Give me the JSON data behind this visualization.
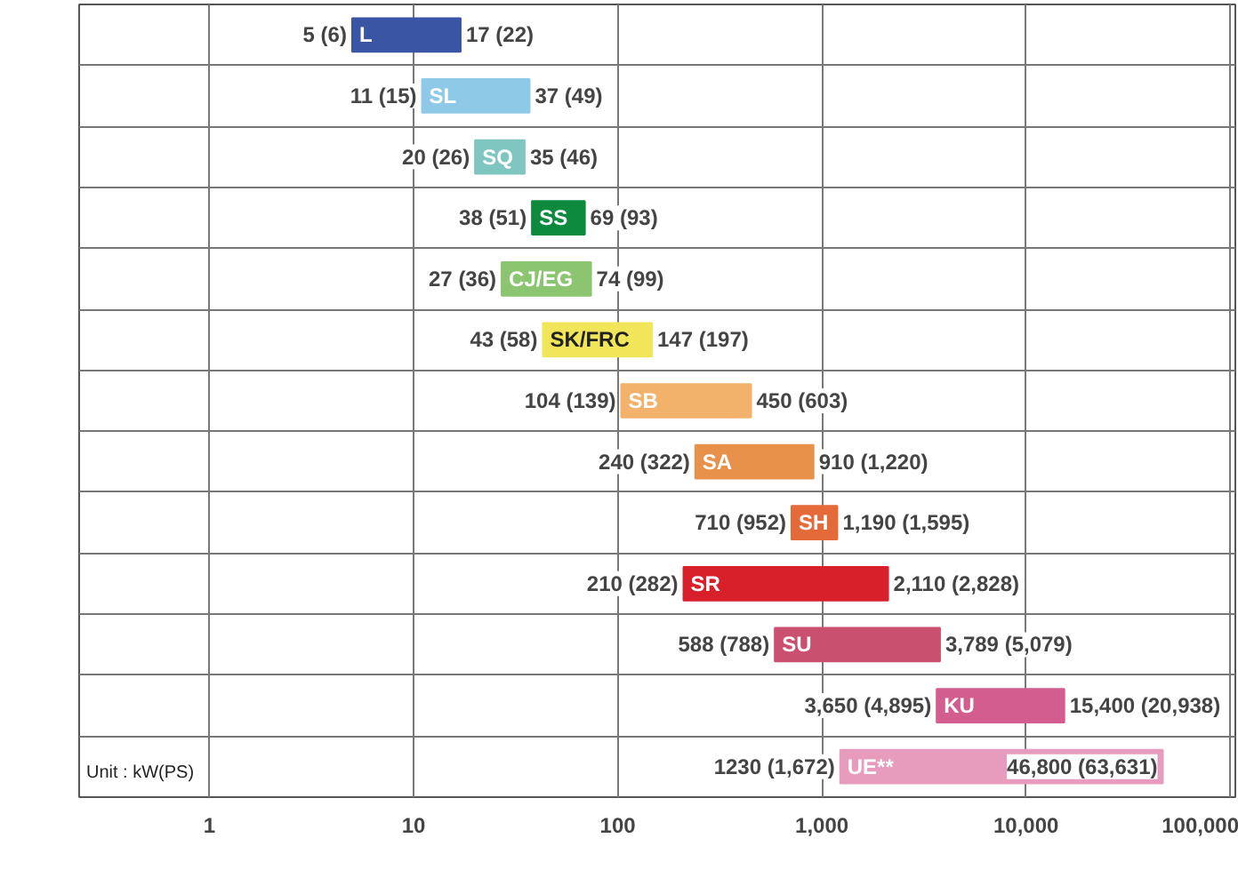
{
  "chart_data": {
    "type": "bar",
    "orientation": "horizontal",
    "log": "x",
    "categories": [
      "L",
      "SL",
      "SQ",
      "SS",
      "CJ/EG",
      "SK/FRC",
      "SB",
      "SA",
      "SH",
      "SR",
      "SU",
      "KU",
      "UE**"
    ],
    "base": [
      5,
      11,
      20,
      38,
      27,
      43,
      104,
      240,
      710,
      210,
      588,
      3650,
      1230
    ],
    "values": [
      12,
      26,
      15,
      31,
      47,
      104,
      346,
      670,
      480,
      1900,
      3201,
      11750,
      45570
    ],
    "colors": [
      "#3a55a4",
      "#8ec9e8",
      "#7fc6c0",
      "#0e8a3e",
      "#8cc56f",
      "#f1e65a",
      "#f2b26b",
      "#e8914a",
      "#e56a3a",
      "#d7202a",
      "#c9506e",
      "#d45d8f",
      "#e79bbd"
    ],
    "annotations": [
      {
        "text": "17 (22)",
        "x": 17,
        "y": "L"
      },
      {
        "text": "37 (49)",
        "x": 37,
        "y": "SL"
      },
      {
        "text": "35 (46)",
        "x": 35,
        "y": "SQ"
      },
      {
        "text": "69 (93)",
        "x": 69,
        "y": "SS"
      },
      {
        "text": "74 (99)",
        "x": 74,
        "y": "CJ/EG"
      },
      {
        "text": "147 (197)",
        "x": 147,
        "y": "SK/FRC"
      },
      {
        "text": "450 (603)",
        "x": 450,
        "y": "SB"
      },
      {
        "text": "910 (1,220)",
        "x": 910,
        "y": "SA"
      },
      {
        "text": "1,190 (1,595)",
        "x": 1190,
        "y": "SH"
      },
      {
        "text": "2,110 (2,828)",
        "x": 2110,
        "y": "SR"
      },
      {
        "text": "3,789 (5,079)",
        "x": 3789,
        "y": "SU"
      },
      {
        "text": "15,400 (20,938)",
        "x": 15400,
        "y": "KU"
      },
      {
        "text": "46,800 (63,631)",
        "x": 46800,
        "y": "UE**"
      },
      {
        "text": "5 (6)",
        "x": 5,
        "y": "L"
      },
      {
        "text": "11 (15)",
        "x": 11,
        "y": "SL"
      },
      {
        "text": "20 (26)",
        "x": 20,
        "y": "SQ"
      },
      {
        "text": "38 (51)",
        "x": 38,
        "y": "SS"
      },
      {
        "text": "27 (36)",
        "x": 27,
        "y": "CJ/EG"
      },
      {
        "text": "43 (58)",
        "x": 43,
        "y": "SK/FRC"
      },
      {
        "text": "104 (139)",
        "x": 104,
        "y": "SB"
      },
      {
        "text": "240 (322)",
        "x": 240,
        "y": "SA"
      },
      {
        "text": "710 (952)",
        "x": 710,
        "y": "SH"
      },
      {
        "text": "210 (282)",
        "x": 210,
        "y": "SR"
      },
      {
        "text": "588 (788)",
        "x": 588,
        "y": "SU"
      },
      {
        "text": "3,650 (4,895)",
        "x": 3650,
        "y": "KU"
      },
      {
        "text": "1230 (1,672)",
        "x": 1230,
        "y": "UE**"
      },
      "Unit : kW(PS)"
    ],
    "xlim": [
      0.23,
      106000
    ],
    "xticks": [
      1,
      10,
      100,
      {
        "value": 1000,
        "label": "1,000"
      },
      {
        "value": 10000,
        "label": "10,000"
      },
      {
        "value": 100000,
        "label": "100,000"
      }
    ],
    "grid": true,
    "tick_labels": "x"
  }
}
